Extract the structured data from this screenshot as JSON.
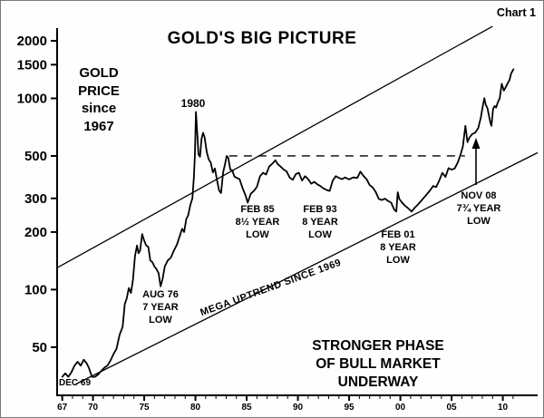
{
  "chart_data": {
    "type": "line",
    "title": "GOLD'S BIG PICTURE",
    "corner_label": "Chart 1",
    "y_scale": "log",
    "xlim": [
      1966.5,
      2013.4
    ],
    "ylim": [
      28,
      2330
    ],
    "yticks": [
      2000,
      1500,
      1000,
      500,
      300,
      200,
      100,
      50
    ],
    "xticks": [
      {
        "year": 1967,
        "label": "67"
      },
      {
        "year": 1970,
        "label": "70"
      },
      {
        "year": 1975,
        "label": "75"
      },
      {
        "year": 1980,
        "label": "80"
      },
      {
        "year": 1985,
        "label": "85"
      },
      {
        "year": 1990,
        "label": "90"
      },
      {
        "year": 1995,
        "label": "95"
      },
      {
        "year": 2000,
        "label": "00"
      },
      {
        "year": 2005,
        "label": "05"
      },
      {
        "year": 2010,
        "label": "10"
      }
    ],
    "minor_xticks": {
      "from": 1967,
      "to": 2011,
      "step": 1
    },
    "grid": false,
    "series": [
      {
        "name": "Gold price (USD per oz, log scale)",
        "points": [
          [
            1967.0,
            35
          ],
          [
            1967.3,
            36.5
          ],
          [
            1967.6,
            35
          ],
          [
            1967.9,
            37
          ],
          [
            1968.2,
            40
          ],
          [
            1968.5,
            42
          ],
          [
            1968.8,
            40
          ],
          [
            1969.1,
            43
          ],
          [
            1969.4,
            41
          ],
          [
            1969.6,
            39
          ],
          [
            1969.9,
            35
          ],
          [
            1970.2,
            35
          ],
          [
            1970.5,
            36
          ],
          [
            1970.8,
            37.5
          ],
          [
            1971.1,
            39
          ],
          [
            1971.4,
            40
          ],
          [
            1971.7,
            42.5
          ],
          [
            1972.0,
            46
          ],
          [
            1972.3,
            49
          ],
          [
            1972.6,
            58
          ],
          [
            1972.9,
            64
          ],
          [
            1973.1,
            84
          ],
          [
            1973.3,
            90
          ],
          [
            1973.5,
            102
          ],
          [
            1973.7,
            96
          ],
          [
            1973.9,
            112
          ],
          [
            1974.1,
            150
          ],
          [
            1974.3,
            170
          ],
          [
            1974.45,
            155
          ],
          [
            1974.6,
            160
          ],
          [
            1974.8,
            195
          ],
          [
            1975.0,
            180
          ],
          [
            1975.2,
            170
          ],
          [
            1975.4,
            167
          ],
          [
            1975.6,
            142
          ],
          [
            1975.8,
            139
          ],
          [
            1976.0,
            132
          ],
          [
            1976.2,
            128
          ],
          [
            1976.4,
            122
          ],
          [
            1976.6,
            104
          ],
          [
            1976.8,
            114
          ],
          [
            1977.0,
            132
          ],
          [
            1977.3,
            142
          ],
          [
            1977.6,
            147
          ],
          [
            1977.9,
            160
          ],
          [
            1978.2,
            172
          ],
          [
            1978.5,
            193
          ],
          [
            1978.7,
            208
          ],
          [
            1978.9,
            200
          ],
          [
            1979.1,
            233
          ],
          [
            1979.3,
            245
          ],
          [
            1979.5,
            277
          ],
          [
            1979.7,
            300
          ],
          [
            1979.85,
            392
          ],
          [
            1979.95,
            512
          ],
          [
            1980.05,
            850
          ],
          [
            1980.2,
            630
          ],
          [
            1980.3,
            510
          ],
          [
            1980.45,
            495
          ],
          [
            1980.6,
            615
          ],
          [
            1980.75,
            660
          ],
          [
            1980.9,
            625
          ],
          [
            1981.1,
            525
          ],
          [
            1981.3,
            480
          ],
          [
            1981.5,
            460
          ],
          [
            1981.7,
            410
          ],
          [
            1981.9,
            430
          ],
          [
            1982.1,
            375
          ],
          [
            1982.3,
            330
          ],
          [
            1982.5,
            320
          ],
          [
            1982.7,
            410
          ],
          [
            1982.9,
            455
          ],
          [
            1983.05,
            500
          ],
          [
            1983.2,
            490
          ],
          [
            1983.4,
            425
          ],
          [
            1983.6,
            420
          ],
          [
            1983.8,
            390
          ],
          [
            1984.0,
            385
          ],
          [
            1984.3,
            378
          ],
          [
            1984.6,
            340
          ],
          [
            1984.9,
            310
          ],
          [
            1985.1,
            285
          ],
          [
            1985.4,
            317
          ],
          [
            1985.7,
            328
          ],
          [
            1986.0,
            345
          ],
          [
            1986.3,
            392
          ],
          [
            1986.6,
            408
          ],
          [
            1986.9,
            400
          ],
          [
            1987.2,
            440
          ],
          [
            1987.5,
            455
          ],
          [
            1987.8,
            475
          ],
          [
            1988.0,
            455
          ],
          [
            1988.3,
            440
          ],
          [
            1988.6,
            425
          ],
          [
            1988.9,
            415
          ],
          [
            1989.2,
            385
          ],
          [
            1989.5,
            375
          ],
          [
            1989.8,
            402
          ],
          [
            1990.1,
            408
          ],
          [
            1990.4,
            372
          ],
          [
            1990.7,
            392
          ],
          [
            1991.0,
            378
          ],
          [
            1991.3,
            358
          ],
          [
            1991.6,
            366
          ],
          [
            1991.9,
            355
          ],
          [
            1992.2,
            348
          ],
          [
            1992.5,
            338
          ],
          [
            1992.8,
            332
          ],
          [
            1993.1,
            328
          ],
          [
            1993.4,
            372
          ],
          [
            1993.7,
            392
          ],
          [
            1994.0,
            384
          ],
          [
            1994.3,
            378
          ],
          [
            1994.6,
            386
          ],
          [
            1995.0,
            377
          ],
          [
            1995.4,
            386
          ],
          [
            1995.8,
            384
          ],
          [
            1996.1,
            414
          ],
          [
            1996.4,
            393
          ],
          [
            1996.7,
            378
          ],
          [
            1997.0,
            352
          ],
          [
            1997.3,
            342
          ],
          [
            1997.6,
            324
          ],
          [
            1997.9,
            298
          ],
          [
            1998.2,
            294
          ],
          [
            1998.5,
            299
          ],
          [
            1998.8,
            291
          ],
          [
            1999.1,
            285
          ],
          [
            1999.4,
            262
          ],
          [
            1999.6,
            256
          ],
          [
            1999.75,
            323
          ],
          [
            1999.9,
            298
          ],
          [
            2000.1,
            288
          ],
          [
            2000.4,
            276
          ],
          [
            2000.7,
            268
          ],
          [
            2001.1,
            256
          ],
          [
            2001.4,
            268
          ],
          [
            2001.7,
            278
          ],
          [
            2002.0,
            290
          ],
          [
            2002.3,
            303
          ],
          [
            2002.6,
            316
          ],
          [
            2002.9,
            330
          ],
          [
            2003.2,
            348
          ],
          [
            2003.5,
            344
          ],
          [
            2003.8,
            372
          ],
          [
            2004.1,
            408
          ],
          [
            2004.4,
            388
          ],
          [
            2004.7,
            432
          ],
          [
            2005.0,
            424
          ],
          [
            2005.3,
            430
          ],
          [
            2005.6,
            462
          ],
          [
            2005.9,
            512
          ],
          [
            2006.1,
            560
          ],
          [
            2006.35,
            718
          ],
          [
            2006.55,
            590
          ],
          [
            2006.75,
            625
          ],
          [
            2007.0,
            650
          ],
          [
            2007.3,
            662
          ],
          [
            2007.6,
            700
          ],
          [
            2007.85,
            792
          ],
          [
            2008.05,
            912
          ],
          [
            2008.2,
            1002
          ],
          [
            2008.35,
            922
          ],
          [
            2008.5,
            890
          ],
          [
            2008.65,
            812
          ],
          [
            2008.8,
            742
          ],
          [
            2008.9,
            718
          ],
          [
            2009.05,
            880
          ],
          [
            2009.2,
            912
          ],
          [
            2009.35,
            895
          ],
          [
            2009.5,
            948
          ],
          [
            2009.7,
            1002
          ],
          [
            2009.9,
            1192
          ],
          [
            2010.1,
            1098
          ],
          [
            2010.3,
            1148
          ],
          [
            2010.5,
            1208
          ],
          [
            2010.65,
            1244
          ],
          [
            2010.8,
            1342
          ],
          [
            2010.95,
            1392
          ],
          [
            2011.05,
            1420
          ]
        ]
      }
    ],
    "trend_channel": {
      "label": "MEGA UPTREND SINCE 1969",
      "lower": {
        "from": [
          1968.3,
          32
        ],
        "to": [
          2013.4,
          520
        ]
      },
      "upper": {
        "from": [
          1966.5,
          130
        ],
        "to": [
          2009.0,
          2380
        ]
      }
    },
    "dashed_resistance": {
      "value": 500,
      "from_year": 1983.3,
      "to_year": 2006.3
    },
    "annotations": {
      "price_box": "GOLD\nPRICE\nsince\n1967",
      "peak_1980": "1980",
      "aug76": "AUG 76\n7 YEAR\nLOW",
      "feb85": "FEB 85\n8½ YEAR\nLOW",
      "feb93": "FEB 93\n8 YEAR\nLOW",
      "feb01": "FEB 01\n8 YEAR\nLOW",
      "nov08": "NOV 08\n7¾ YEAR\nLOW",
      "dec69": "DEC 69",
      "mega_uptrend": "MEGA UPTREND SINCE 1969",
      "bottom_note": "STRONGER PHASE\nOF BULL MARKET UNDERWAY"
    }
  }
}
